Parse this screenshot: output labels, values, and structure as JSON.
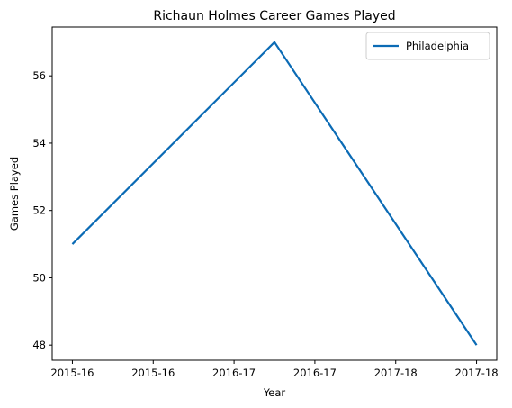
{
  "chart_data": {
    "type": "line",
    "title": "Richaun Holmes Career Games Played",
    "xlabel": "Year",
    "ylabel": "Games Played",
    "x_tick_labels": [
      "2015-16",
      "2015-16",
      "2016-17",
      "2016-17",
      "2017-18",
      "2017-18"
    ],
    "categories": [
      "2015-16",
      "2016-17",
      "2017-18"
    ],
    "series": [
      {
        "name": "Philadelphia",
        "color": "#0b6bb5",
        "values": [
          51,
          57,
          48
        ]
      }
    ],
    "yticks": [
      48,
      50,
      52,
      54,
      56
    ],
    "ylim": [
      47.55,
      57.45
    ],
    "grid": false,
    "legend_position": "upper-right"
  }
}
